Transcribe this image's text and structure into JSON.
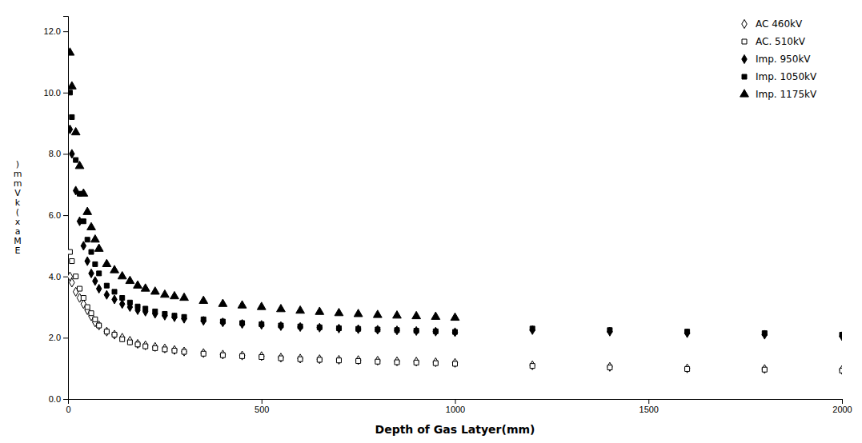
{
  "chart_data": {
    "type": "scatter",
    "xlabel": "Depth of Gas Latyer(mm)",
    "ylabel": ")\nm\nm\nV\nk\n(\nx\na\nM\nE",
    "xlim": [
      0,
      2000
    ],
    "ylim": [
      0.0,
      12.5
    ],
    "xticks": [
      0,
      500,
      1000,
      1500,
      2000
    ],
    "yticks": [
      {
        "value": 0.0,
        "label": "0.0"
      },
      {
        "value": 2.0,
        "label": "2.0"
      },
      {
        "value": 4.0,
        "label": "4.0"
      },
      {
        "value": 6.0,
        "label": "6.0"
      },
      {
        "value": 8.0,
        "label": "8.0"
      },
      {
        "value": 10.0,
        "label": "10.0"
      },
      {
        "value": 12.0,
        "label": "12.0"
      }
    ],
    "grid": false,
    "legend": "upper right",
    "series": [
      {
        "name": "AC 460kV",
        "marker": "diamond-open",
        "color": "#000000",
        "x": [
          5,
          10,
          20,
          30,
          40,
          50,
          60,
          70,
          80,
          100,
          120,
          140,
          160,
          180,
          200,
          225,
          250,
          275,
          300,
          350,
          400,
          450,
          500,
          550,
          600,
          650,
          700,
          750,
          800,
          850,
          900,
          950,
          1000,
          1200,
          1400,
          1600,
          1800,
          2000
        ],
        "values": [
          4.0,
          3.8,
          3.5,
          3.3,
          3.1,
          2.9,
          2.7,
          2.5,
          2.4,
          2.2,
          2.1,
          2.0,
          1.9,
          1.8,
          1.75,
          1.7,
          1.65,
          1.6,
          1.55,
          1.5,
          1.45,
          1.42,
          1.4,
          1.35,
          1.32,
          1.3,
          1.28,
          1.27,
          1.25,
          1.23,
          1.22,
          1.2,
          1.18,
          1.1,
          1.05,
          1.0,
          0.98,
          0.95
        ]
      },
      {
        "name": "AC. 510kV",
        "marker": "square-open",
        "color": "#000000",
        "x": [
          5,
          10,
          20,
          30,
          40,
          50,
          60,
          70,
          80,
          100,
          120,
          140,
          160,
          180,
          200,
          225,
          250,
          275,
          300,
          350,
          400,
          450,
          500,
          550,
          600,
          650,
          700,
          750,
          800,
          850,
          900,
          950,
          1000,
          1200,
          1400,
          1600,
          1800,
          2000
        ],
        "values": [
          4.8,
          4.5,
          4.0,
          3.6,
          3.3,
          3.0,
          2.8,
          2.6,
          2.4,
          2.2,
          2.1,
          1.95,
          1.85,
          1.78,
          1.72,
          1.66,
          1.62,
          1.58,
          1.54,
          1.48,
          1.43,
          1.4,
          1.37,
          1.33,
          1.3,
          1.28,
          1.26,
          1.24,
          1.22,
          1.2,
          1.19,
          1.17,
          1.15,
          1.08,
          1.03,
          0.98,
          0.96,
          0.93
        ]
      },
      {
        "name": "Imp. 950kV",
        "marker": "diamond",
        "color": "#000000",
        "x": [
          5,
          10,
          20,
          30,
          40,
          50,
          60,
          70,
          80,
          100,
          120,
          140,
          160,
          180,
          200,
          225,
          250,
          275,
          300,
          350,
          400,
          450,
          500,
          550,
          600,
          650,
          700,
          750,
          800,
          850,
          900,
          950,
          1000,
          1200,
          1400,
          1600,
          1800,
          2000
        ],
        "values": [
          8.8,
          8.0,
          6.8,
          5.8,
          5.0,
          4.5,
          4.1,
          3.85,
          3.6,
          3.4,
          3.25,
          3.1,
          3.0,
          2.9,
          2.85,
          2.78,
          2.72,
          2.67,
          2.62,
          2.55,
          2.5,
          2.45,
          2.42,
          2.38,
          2.35,
          2.33,
          2.3,
          2.28,
          2.26,
          2.24,
          2.22,
          2.2,
          2.18,
          2.25,
          2.2,
          2.15,
          2.1,
          2.05
        ]
      },
      {
        "name": "Imp. 1050kV",
        "marker": "square",
        "color": "#000000",
        "x": [
          5,
          10,
          20,
          30,
          40,
          50,
          60,
          70,
          80,
          100,
          120,
          140,
          160,
          180,
          200,
          225,
          250,
          275,
          300,
          350,
          400,
          450,
          500,
          550,
          600,
          650,
          700,
          750,
          800,
          850,
          900,
          950,
          1000,
          1200,
          1400,
          1600,
          1800,
          2000
        ],
        "values": [
          10.0,
          9.2,
          7.8,
          6.7,
          5.8,
          5.2,
          4.8,
          4.4,
          4.1,
          3.7,
          3.5,
          3.3,
          3.15,
          3.02,
          2.95,
          2.86,
          2.78,
          2.72,
          2.68,
          2.6,
          2.53,
          2.48,
          2.44,
          2.4,
          2.37,
          2.34,
          2.31,
          2.29,
          2.27,
          2.25,
          2.23,
          2.21,
          2.19,
          2.3,
          2.25,
          2.2,
          2.15,
          2.1
        ]
      },
      {
        "name": "Imp. 1175kV",
        "marker": "triangle-up",
        "color": "#000000",
        "x": [
          5,
          10,
          20,
          30,
          40,
          50,
          60,
          70,
          80,
          100,
          120,
          140,
          160,
          180,
          200,
          225,
          250,
          275,
          300,
          350,
          400,
          450,
          500,
          550,
          600,
          650,
          700,
          750,
          800,
          850,
          900,
          950,
          1000
        ],
        "values": [
          11.3,
          10.2,
          8.7,
          7.6,
          6.7,
          6.1,
          5.6,
          5.2,
          4.9,
          4.4,
          4.2,
          4.0,
          3.85,
          3.7,
          3.6,
          3.5,
          3.4,
          3.35,
          3.3,
          3.2,
          3.1,
          3.05,
          3.0,
          2.93,
          2.88,
          2.84,
          2.8,
          2.77,
          2.74,
          2.72,
          2.7,
          2.68,
          2.65
        ]
      }
    ]
  }
}
